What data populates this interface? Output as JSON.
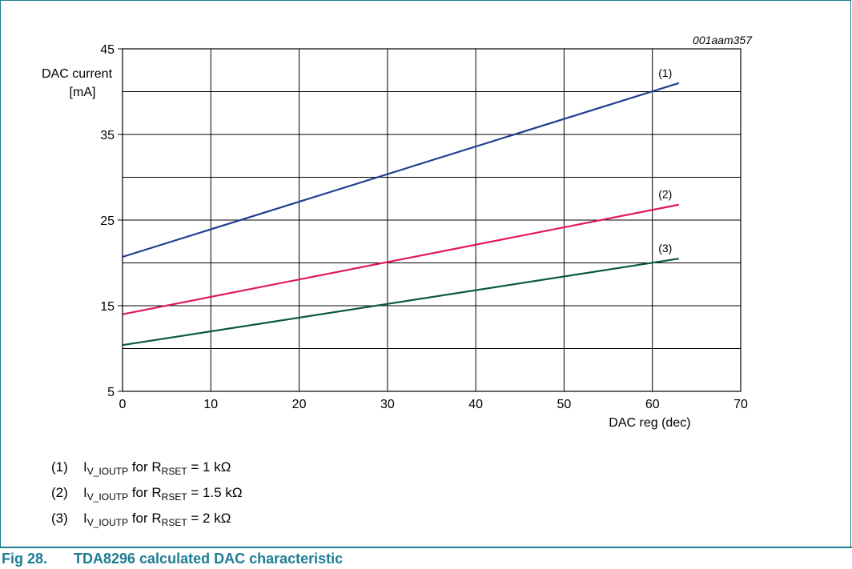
{
  "chart_data": {
    "type": "line",
    "figure_id": "001aam357",
    "ylabel_line1": "DAC current",
    "ylabel_line2": "[mA]",
    "xlabel": "DAC reg (dec)",
    "xlim": [
      0,
      70
    ],
    "ylim": [
      5,
      45
    ],
    "xticks": [
      0,
      10,
      20,
      30,
      40,
      50,
      60,
      70
    ],
    "yticks": [
      5,
      15,
      25,
      35,
      45
    ],
    "ygrid": [
      10,
      15,
      20,
      25,
      30,
      35,
      40,
      45
    ],
    "grid": true,
    "series": [
      {
        "name": "(1)",
        "color": "#1f3f8f",
        "x": [
          0,
          63
        ],
        "y": [
          20.7,
          41.0
        ]
      },
      {
        "name": "(2)",
        "color": "#e0185c",
        "x": [
          0,
          63
        ],
        "y": [
          14.0,
          26.8
        ]
      },
      {
        "name": "(3)",
        "color": "#0a5a46",
        "x": [
          0,
          63
        ],
        "y": [
          10.4,
          20.5
        ]
      }
    ]
  },
  "legend": [
    {
      "num": "(1)",
      "i": "I",
      "i_sub": "V_IOUTP",
      "mid": " for R",
      "r_sub": "RSET",
      "value": " = 1 kΩ"
    },
    {
      "num": "(2)",
      "i": "I",
      "i_sub": "V_IOUTP",
      "mid": " for R",
      "r_sub": "RSET",
      "value": " = 1.5 kΩ"
    },
    {
      "num": "(3)",
      "i": "I",
      "i_sub": "V_IOUTP",
      "mid": " for R",
      "r_sub": "RSET",
      "value": " = 2 kΩ"
    }
  ],
  "caption": {
    "fig_num": "Fig 28.",
    "title": "TDA8296 calculated DAC characteristic"
  }
}
